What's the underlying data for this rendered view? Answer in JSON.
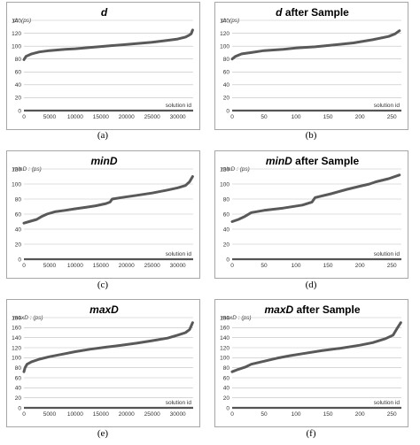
{
  "captions": [
    "(a)",
    "(b)",
    "(c)",
    "(d)",
    "(e)",
    "(f)"
  ],
  "chart_data": [
    {
      "type": "line",
      "title": "d",
      "title_suffix": "",
      "ylabel": "d : (ps)",
      "xlabel": "solution id",
      "ylim": [
        0,
        140
      ],
      "yticks": [
        0,
        20,
        40,
        60,
        80,
        100,
        120,
        140
      ],
      "xlim": [
        0,
        33000
      ],
      "xticks": [
        0,
        5000,
        10000,
        15000,
        20000,
        25000,
        30000
      ],
      "grid": true,
      "x": [
        0,
        400,
        1500,
        3000,
        5000,
        8000,
        10000,
        13000,
        16000,
        19000,
        22000,
        25000,
        28000,
        30000,
        31500,
        32200,
        32600,
        32900
      ],
      "y": [
        79,
        84,
        88,
        91,
        93,
        95,
        96,
        98,
        100,
        102,
        104,
        106,
        109,
        111,
        114,
        117,
        119,
        125
      ]
    },
    {
      "type": "line",
      "title": "d",
      "title_suffix": " after Sample",
      "ylabel": "d : (ps)",
      "xlabel": "solution id",
      "ylim": [
        0,
        140
      ],
      "yticks": [
        0,
        20,
        40,
        60,
        80,
        100,
        120,
        140
      ],
      "xlim": [
        0,
        265
      ],
      "xticks": [
        0,
        50,
        100,
        150,
        200,
        250
      ],
      "grid": true,
      "x": [
        0,
        5,
        15,
        30,
        50,
        80,
        100,
        130,
        160,
        190,
        220,
        245,
        255,
        262
      ],
      "y": [
        80,
        84,
        88,
        90,
        93,
        95,
        97,
        99,
        102,
        105,
        110,
        115,
        119,
        124
      ]
    },
    {
      "type": "line",
      "title": "minD",
      "title_suffix": "",
      "ylabel": "minD : (ps)",
      "xlabel": "solution id",
      "ylim": [
        0,
        120
      ],
      "yticks": [
        0,
        20,
        40,
        60,
        80,
        100,
        120
      ],
      "xlim": [
        0,
        33000
      ],
      "xticks": [
        0,
        5000,
        10000,
        15000,
        20000,
        25000,
        30000
      ],
      "grid": true,
      "x": [
        0,
        1000,
        2500,
        3500,
        4500,
        6000,
        8000,
        10000,
        12000,
        14000,
        16000,
        16800,
        17200,
        19000,
        22000,
        25000,
        28000,
        30000,
        31500,
        32300,
        32900
      ],
      "y": [
        48,
        50,
        53,
        57,
        60,
        63,
        65,
        67,
        69,
        71,
        74,
        76,
        80,
        82,
        85,
        88,
        92,
        95,
        98,
        103,
        110
      ]
    },
    {
      "type": "line",
      "title": "minD",
      "title_suffix": " after Sample",
      "ylabel": "minD : (ps)",
      "xlabel": "solution id",
      "ylim": [
        0,
        120
      ],
      "yticks": [
        0,
        20,
        40,
        60,
        80,
        100,
        120
      ],
      "xlim": [
        0,
        265
      ],
      "xticks": [
        0,
        50,
        100,
        150,
        200,
        250
      ],
      "grid": true,
      "x": [
        0,
        10,
        20,
        30,
        50,
        80,
        110,
        125,
        130,
        155,
        180,
        200,
        215,
        225,
        245,
        262
      ],
      "y": [
        50,
        53,
        57,
        62,
        65,
        68,
        72,
        76,
        82,
        87,
        93,
        97,
        100,
        103,
        107,
        112
      ]
    },
    {
      "type": "line",
      "title": "maxD",
      "title_suffix": "",
      "ylabel": "maxD : (ps)",
      "xlabel": "solution id",
      "ylim": [
        0,
        180
      ],
      "yticks": [
        0,
        20,
        40,
        60,
        80,
        100,
        120,
        140,
        160,
        180
      ],
      "xlim": [
        0,
        33000
      ],
      "xticks": [
        0,
        5000,
        10000,
        15000,
        20000,
        25000,
        30000
      ],
      "grid": true,
      "x": [
        0,
        200,
        600,
        1500,
        3000,
        5000,
        8000,
        10000,
        13000,
        16000,
        19000,
        22000,
        25000,
        28000,
        30000,
        31500,
        32300,
        32600,
        32900
      ],
      "y": [
        72,
        80,
        87,
        92,
        97,
        102,
        108,
        112,
        117,
        121,
        125,
        129,
        134,
        139,
        145,
        150,
        156,
        163,
        170
      ]
    },
    {
      "type": "line",
      "title": "maxD",
      "title_suffix": " after Sample",
      "ylabel": "maxD : (ps)",
      "xlabel": "solution id",
      "ylim": [
        0,
        180
      ],
      "yticks": [
        0,
        20,
        40,
        60,
        80,
        100,
        120,
        140,
        160,
        180
      ],
      "xlim": [
        0,
        265
      ],
      "xticks": [
        0,
        50,
        100,
        150,
        200,
        250
      ],
      "grid": true,
      "x": [
        0,
        10,
        20,
        30,
        50,
        70,
        90,
        110,
        140,
        170,
        200,
        220,
        240,
        252,
        258,
        264
      ],
      "y": [
        72,
        77,
        81,
        87,
        93,
        99,
        104,
        108,
        114,
        119,
        125,
        130,
        138,
        145,
        158,
        170
      ]
    }
  ]
}
